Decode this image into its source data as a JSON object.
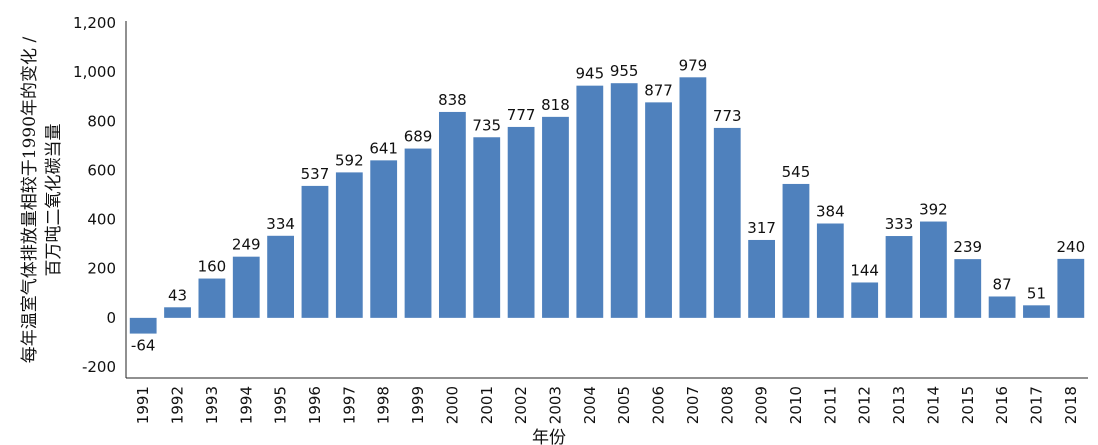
{
  "chart_data": {
    "type": "bar",
    "title": "",
    "xlabel": "年份",
    "ylabel": "每年温室气体排放量相较于1990年的变化 / 百万吨二氧化碳当量",
    "ylabel_lines": [
      "每年温室气体排放量相较于1990年的变化 /",
      "百万吨二氧化碳当量"
    ],
    "ylim": [
      -200,
      1200
    ],
    "yticks": [
      -200,
      0,
      200,
      400,
      600,
      800,
      1000,
      1200
    ],
    "ytick_labels": [
      "-200",
      "0",
      "200",
      "400",
      "600",
      "800",
      "1,000",
      "1,200"
    ],
    "grid": false,
    "legend": "none",
    "bar_color": "#4f81bd",
    "categories": [
      "1991",
      "1992",
      "1993",
      "1994",
      "1995",
      "1996",
      "1997",
      "1998",
      "1999",
      "2000",
      "2001",
      "2002",
      "2003",
      "2004",
      "2005",
      "2006",
      "2007",
      "2008",
      "2009",
      "2010",
      "2011",
      "2012",
      "2013",
      "2014",
      "2015",
      "2016",
      "2017",
      "2018"
    ],
    "values": [
      -64,
      43,
      160,
      249,
      334,
      537,
      592,
      641,
      689,
      838,
      735,
      777,
      818,
      945,
      955,
      877,
      979,
      773,
      317,
      545,
      384,
      144,
      333,
      392,
      239,
      87,
      51,
      240
    ]
  }
}
